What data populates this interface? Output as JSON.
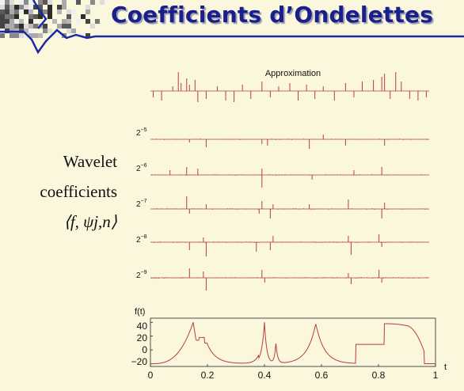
{
  "slide": {
    "title": "Coefficients d’Ondelettes",
    "label_line1": "Wavelet",
    "label_line2": "coefficients",
    "label_formula": "⟨f, ψj,n⟩"
  },
  "decomposition": {
    "approximation_label": "Approximation",
    "scales": [
      {
        "base": "2",
        "exp": "−5"
      },
      {
        "base": "2",
        "exp": "−6"
      },
      {
        "base": "2",
        "exp": "−7"
      },
      {
        "base": "2",
        "exp": "−8"
      },
      {
        "base": "2",
        "exp": "−9"
      }
    ]
  },
  "signal_plot": {
    "ylabel": "f(t)",
    "xlabel": "t",
    "xticks": [
      "0",
      "0.2",
      "0.4",
      "0.6",
      "0.8",
      "1"
    ],
    "yticks": [
      "40",
      "20",
      "0",
      "−20"
    ]
  },
  "colors": {
    "title": "#1a1f8c",
    "rule": "#1a2aa0",
    "stem": "#b34040",
    "background": "#fbf7dc"
  }
}
